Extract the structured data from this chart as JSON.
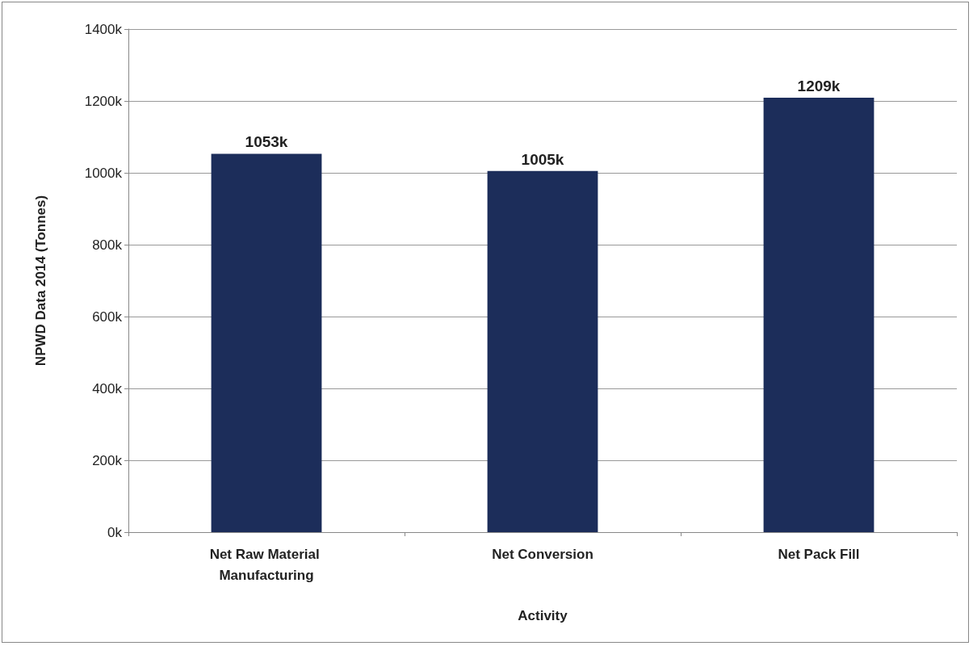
{
  "chart_data": {
    "type": "bar",
    "xlabel": "Activity",
    "ylabel": "NPWD Data 2014 (Tonnes)",
    "categories": [
      "Net Raw Material Manufacturing",
      "Net Conversion",
      "Net Pack Fill"
    ],
    "values": [
      1053000,
      1005000,
      1209000
    ],
    "color": "#1c2d5a",
    "value_labels": [
      "1053k",
      "1005k",
      "1209k"
    ],
    "ylim": [
      0,
      1400000
    ],
    "yticks": [
      {
        "value": 0,
        "label": "0k"
      },
      {
        "value": 200000,
        "label": "200k"
      },
      {
        "value": 400000,
        "label": "400k"
      },
      {
        "value": 600000,
        "label": "600k"
      },
      {
        "value": 800000,
        "label": "800k"
      },
      {
        "value": 1000000,
        "label": "1000k"
      },
      {
        "value": 1200000,
        "label": "1200k"
      },
      {
        "value": 1400000,
        "label": "1400k"
      }
    ],
    "grid": true
  }
}
